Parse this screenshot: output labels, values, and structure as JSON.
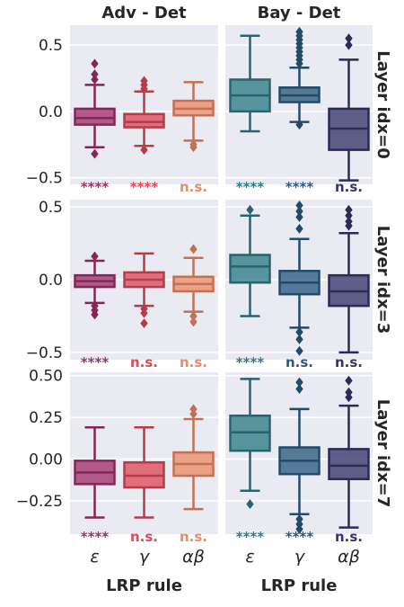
{
  "chart_data": {
    "type": "box",
    "columns": [
      "Adv - Det",
      "Bay - Det"
    ],
    "rows": [
      "Layer idx=0",
      "Layer idx=3",
      "Layer idx=7"
    ],
    "categories": [
      "ε",
      "γ",
      "αβ"
    ],
    "xlabel": "LRP rule",
    "colors": {
      "Adv - Det": [
        "#a0306a",
        "#dc4a5a",
        "#ec8a66"
      ],
      "Bay - Det": [
        "#2e7b86",
        "#2a5a80",
        "#36346a"
      ]
    },
    "panels": [
      {
        "row": 0,
        "col": 0,
        "ylim": [
          -0.55,
          0.65
        ],
        "yticks": [
          "0.5",
          "0.0",
          "−0.5"
        ],
        "ytick_values": [
          0.5,
          0.0,
          -0.5
        ],
        "boxes": [
          {
            "q1": -0.1,
            "median": -0.05,
            "q3": 0.02,
            "whisker_low": -0.27,
            "whisker_high": 0.2,
            "outliers": [
              0.36,
              0.28,
              0.24,
              -0.32
            ]
          },
          {
            "q1": -0.12,
            "median": -0.08,
            "q3": -0.02,
            "whisker_low": -0.26,
            "whisker_high": 0.15,
            "outliers": [
              0.23,
              0.2,
              0.17,
              -0.29
            ]
          },
          {
            "q1": -0.03,
            "median": 0.02,
            "q3": 0.08,
            "whisker_low": -0.22,
            "whisker_high": 0.22,
            "outliers": [
              -0.25,
              -0.27
            ]
          }
        ],
        "significance": [
          "****",
          "****",
          "n.s."
        ]
      },
      {
        "row": 0,
        "col": 1,
        "ylim": [
          -0.55,
          0.65
        ],
        "boxes": [
          {
            "q1": 0.0,
            "median": 0.12,
            "q3": 0.24,
            "whisker_low": -0.15,
            "whisker_high": 0.57,
            "outliers": []
          },
          {
            "q1": 0.07,
            "median": 0.12,
            "q3": 0.18,
            "whisker_low": -0.08,
            "whisker_high": 0.33,
            "outliers": [
              0.6,
              0.57,
              0.54,
              0.51,
              0.48,
              0.45,
              0.42,
              0.39,
              0.36,
              -0.1
            ]
          },
          {
            "q1": -0.29,
            "median": -0.13,
            "q3": 0.02,
            "whisker_low": -0.52,
            "whisker_high": 0.39,
            "outliers": [
              0.55,
              0.5
            ]
          }
        ],
        "significance": [
          "****",
          "****",
          "n.s."
        ]
      },
      {
        "row": 1,
        "col": 0,
        "ylim": [
          -0.55,
          0.55
        ],
        "yticks": [
          "0.5",
          "0.0",
          "−0.5"
        ],
        "ytick_values": [
          0.5,
          0.0,
          -0.5
        ],
        "boxes": [
          {
            "q1": -0.05,
            "median": -0.01,
            "q3": 0.03,
            "whisker_low": -0.16,
            "whisker_high": 0.13,
            "outliers": [
              0.16,
              -0.18,
              -0.21,
              -0.24
            ]
          },
          {
            "q1": -0.05,
            "median": 0.0,
            "q3": 0.05,
            "whisker_low": -0.18,
            "whisker_high": 0.18,
            "outliers": [
              -0.2,
              -0.23,
              -0.3
            ]
          },
          {
            "q1": -0.08,
            "median": -0.03,
            "q3": 0.02,
            "whisker_low": -0.22,
            "whisker_high": 0.15,
            "outliers": [
              0.21,
              -0.25,
              -0.29
            ]
          }
        ],
        "significance": [
          "****",
          "n.s.",
          "n.s."
        ]
      },
      {
        "row": 1,
        "col": 1,
        "ylim": [
          -0.55,
          0.55
        ],
        "boxes": [
          {
            "q1": -0.02,
            "median": 0.09,
            "q3": 0.17,
            "whisker_low": -0.25,
            "whisker_high": 0.44,
            "outliers": [
              0.48
            ]
          },
          {
            "q1": -0.1,
            "median": -0.02,
            "q3": 0.06,
            "whisker_low": -0.33,
            "whisker_high": 0.28,
            "outliers": [
              0.51,
              0.47,
              0.43,
              0.35,
              -0.36,
              -0.41,
              -0.49
            ]
          },
          {
            "q1": -0.18,
            "median": -0.08,
            "q3": 0.03,
            "whisker_low": -0.5,
            "whisker_high": 0.32,
            "outliers": [
              0.48,
              0.44,
              0.4,
              0.37
            ]
          }
        ],
        "significance": [
          "****",
          "n.s.",
          "n.s."
        ]
      },
      {
        "row": 2,
        "col": 0,
        "ylim": [
          -0.45,
          0.52
        ],
        "yticks": [
          "0.50",
          "0.25",
          "0.00",
          "−0.25"
        ],
        "ytick_values": [
          0.5,
          0.25,
          0.0,
          -0.25
        ],
        "boxes": [
          {
            "q1": -0.15,
            "median": -0.08,
            "q3": -0.01,
            "whisker_low": -0.35,
            "whisker_high": 0.19,
            "outliers": []
          },
          {
            "q1": -0.17,
            "median": -0.1,
            "q3": -0.02,
            "whisker_low": -0.35,
            "whisker_high": 0.19,
            "outliers": []
          },
          {
            "q1": -0.1,
            "median": -0.03,
            "q3": 0.04,
            "whisker_low": -0.3,
            "whisker_high": 0.24,
            "outliers": [
              0.3,
              0.27
            ]
          }
        ],
        "significance": [
          "****",
          "n.s.",
          "n.s."
        ]
      },
      {
        "row": 2,
        "col": 1,
        "ylim": [
          -0.45,
          0.52
        ],
        "boxes": [
          {
            "q1": 0.05,
            "median": 0.16,
            "q3": 0.26,
            "whisker_low": -0.19,
            "whisker_high": 0.48,
            "outliers": [
              -0.27
            ]
          },
          {
            "q1": -0.09,
            "median": -0.01,
            "q3": 0.07,
            "whisker_low": -0.33,
            "whisker_high": 0.3,
            "outliers": [
              0.46,
              0.42,
              -0.36,
              -0.39,
              -0.42
            ]
          },
          {
            "q1": -0.12,
            "median": -0.04,
            "q3": 0.06,
            "whisker_low": -0.41,
            "whisker_high": 0.32,
            "outliers": [
              0.47,
              0.4,
              0.37
            ]
          }
        ],
        "significance": [
          "****",
          "****",
          "n.s."
        ]
      }
    ]
  }
}
